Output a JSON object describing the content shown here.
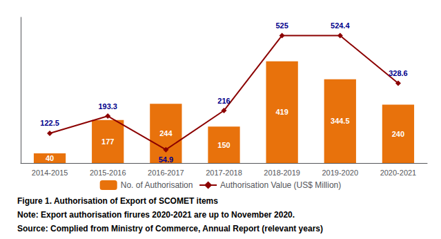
{
  "chart_data": {
    "type": "bar",
    "title": "Figure 1. Authorisation of Export of SCOMET items",
    "annotations": [
      "Note: Export authorisation firures 2020-2021 are up to November 2020.",
      "Source: Complied from Ministry of Commerce, Annual Report (relevant years)"
    ],
    "categories": [
      "2014-2015",
      "2015-2016",
      "2016-2017",
      "2017-2018",
      "2018-2019",
      "2019-2020",
      "2020-2021"
    ],
    "series": [
      {
        "name": "No. of Authorisation",
        "type": "bar",
        "color": "#E8720C",
        "values": [
          40,
          177,
          244,
          150,
          419,
          344.5,
          240
        ]
      },
      {
        "name": "Authorisation Value (US$ Million)",
        "type": "line",
        "color": "#8B0000",
        "marker": "diamond",
        "values": [
          122.5,
          193.3,
          54.9,
          216,
          525,
          524.4,
          328.6
        ]
      }
    ],
    "ylim": [
      0,
      600
    ],
    "grid": false,
    "legend": "bottom",
    "data_labels": true,
    "tick_labels": "x"
  }
}
